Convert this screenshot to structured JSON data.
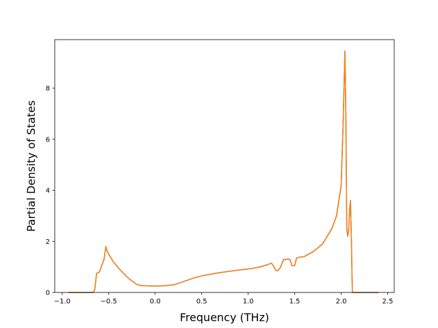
{
  "chart_data": {
    "type": "line",
    "title": "",
    "xlabel": "Frequency (THz)",
    "ylabel": "Partial Density of States",
    "xlim": [
      -1.08,
      2.57
    ],
    "ylim": [
      0,
      9.9
    ],
    "xticks": [
      -1.0,
      -0.5,
      0.0,
      0.5,
      1.0,
      1.5,
      2.0,
      2.5
    ],
    "xtick_labels": [
      "−1.0",
      "−0.5",
      "0.0",
      "0.5",
      "1.0",
      "1.5",
      "2.0",
      "2.5"
    ],
    "yticks": [
      0,
      2,
      4,
      6,
      8
    ],
    "ytick_labels": [
      "0",
      "2",
      "4",
      "6",
      "8"
    ],
    "grid": false,
    "series": [
      {
        "color": "#1f77b4",
        "x": [
          -0.93,
          -0.67,
          -0.65,
          -0.63,
          -0.6,
          -0.57,
          -0.55,
          -0.53,
          -0.52,
          -0.5,
          -0.45,
          -0.4,
          -0.35,
          -0.3,
          -0.25,
          -0.2,
          -0.15,
          -0.1,
          0.0,
          0.1,
          0.2,
          0.3,
          0.4,
          0.5,
          0.6,
          0.7,
          0.8,
          0.9,
          1.0,
          1.1,
          1.15,
          1.2,
          1.25,
          1.27,
          1.3,
          1.32,
          1.35,
          1.38,
          1.4,
          1.43,
          1.45,
          1.47,
          1.5,
          1.52,
          1.55,
          1.6,
          1.7,
          1.8,
          1.9,
          1.95,
          2.0,
          2.02,
          2.04,
          2.05,
          2.06,
          2.07,
          2.08,
          2.09,
          2.1,
          2.11,
          2.12,
          2.13,
          2.2,
          2.4
        ],
        "y": [
          0,
          0,
          0.1,
          0.75,
          0.8,
          1.1,
          1.3,
          1.8,
          1.65,
          1.5,
          1.2,
          0.98,
          0.78,
          0.6,
          0.45,
          0.32,
          0.27,
          0.26,
          0.25,
          0.26,
          0.3,
          0.42,
          0.55,
          0.65,
          0.72,
          0.78,
          0.83,
          0.88,
          0.92,
          0.98,
          1.02,
          1.08,
          1.15,
          1.05,
          0.85,
          0.85,
          1.0,
          1.3,
          1.28,
          1.32,
          1.28,
          1.05,
          1.05,
          1.35,
          1.38,
          1.4,
          1.6,
          1.9,
          2.5,
          3.0,
          4.2,
          6.5,
          9.45,
          7.0,
          2.5,
          2.2,
          2.4,
          3.2,
          3.6,
          2.0,
          0,
          0,
          0,
          0
        ]
      },
      {
        "color": "#ff7f0e",
        "x": [
          -0.93,
          -0.67,
          -0.65,
          -0.63,
          -0.6,
          -0.57,
          -0.55,
          -0.53,
          -0.52,
          -0.5,
          -0.45,
          -0.4,
          -0.35,
          -0.3,
          -0.25,
          -0.2,
          -0.15,
          -0.1,
          0.0,
          0.1,
          0.2,
          0.3,
          0.4,
          0.5,
          0.6,
          0.7,
          0.8,
          0.9,
          1.0,
          1.1,
          1.15,
          1.2,
          1.25,
          1.27,
          1.3,
          1.32,
          1.35,
          1.38,
          1.4,
          1.43,
          1.45,
          1.47,
          1.5,
          1.52,
          1.55,
          1.6,
          1.7,
          1.8,
          1.9,
          1.95,
          2.0,
          2.02,
          2.04,
          2.05,
          2.06,
          2.07,
          2.08,
          2.09,
          2.1,
          2.11,
          2.12,
          2.13,
          2.2,
          2.4
        ],
        "y": [
          0,
          0,
          0.1,
          0.75,
          0.8,
          1.1,
          1.3,
          1.8,
          1.65,
          1.5,
          1.2,
          0.98,
          0.78,
          0.6,
          0.45,
          0.32,
          0.27,
          0.26,
          0.25,
          0.26,
          0.3,
          0.42,
          0.55,
          0.65,
          0.72,
          0.78,
          0.83,
          0.88,
          0.92,
          0.98,
          1.02,
          1.08,
          1.15,
          1.05,
          0.85,
          0.85,
          1.0,
          1.3,
          1.28,
          1.32,
          1.28,
          1.05,
          1.05,
          1.35,
          1.38,
          1.4,
          1.6,
          1.9,
          2.5,
          3.0,
          4.2,
          6.5,
          9.45,
          7.0,
          2.5,
          2.2,
          2.4,
          3.2,
          3.6,
          2.0,
          0,
          0,
          0,
          0
        ]
      }
    ]
  }
}
